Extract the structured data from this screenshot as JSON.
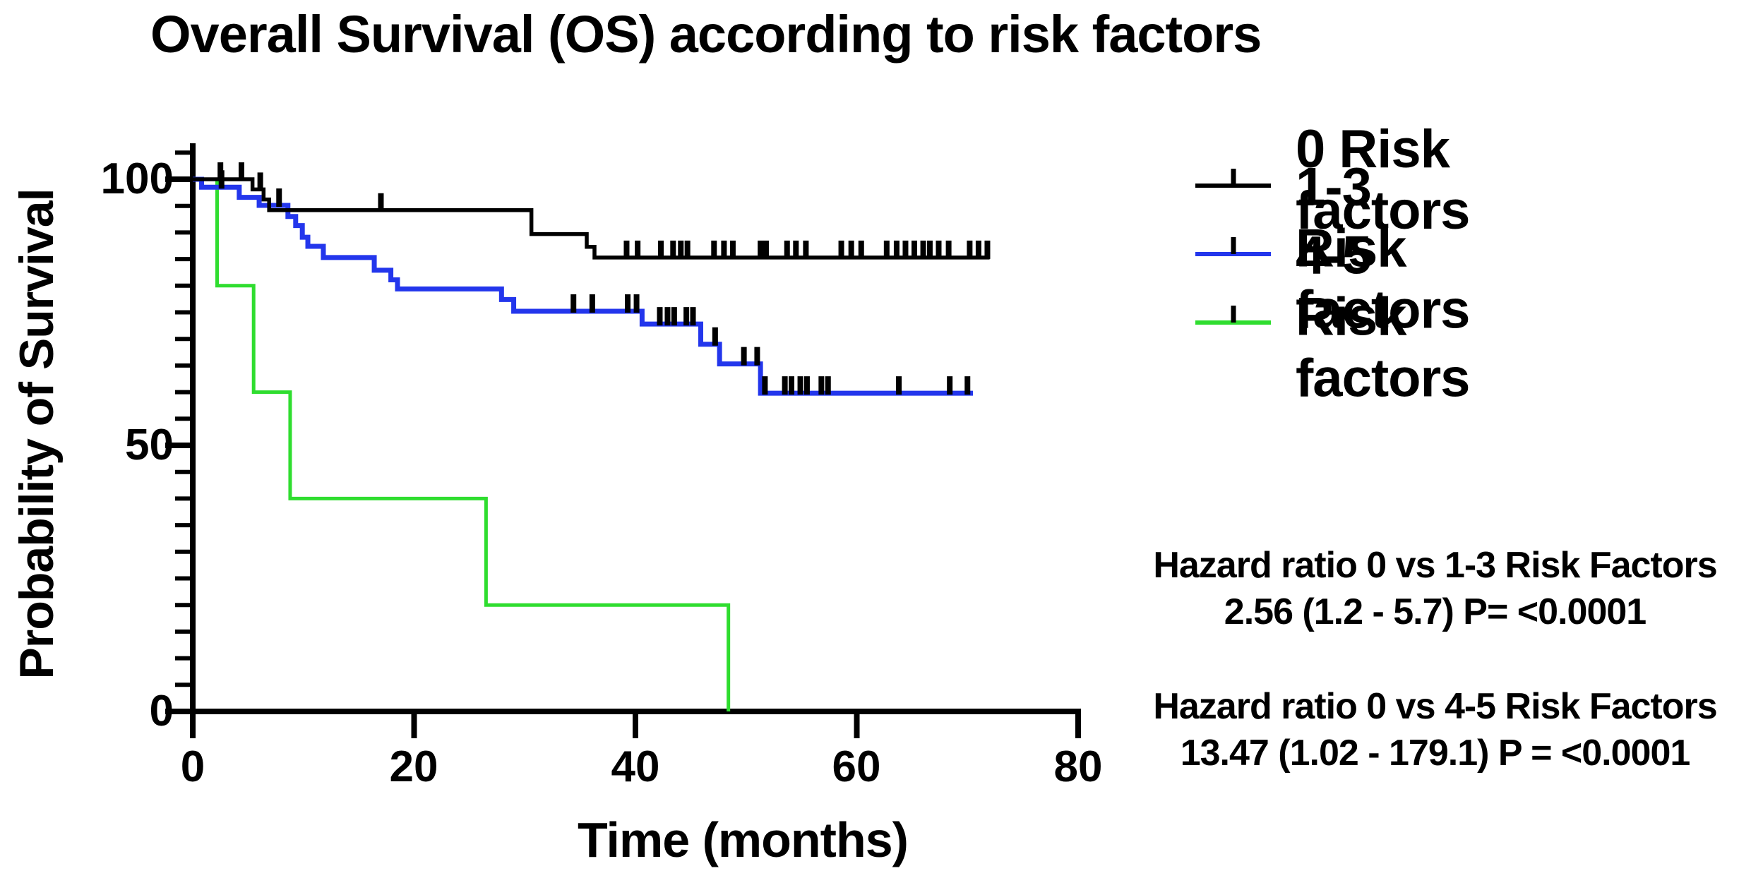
{
  "title": "Overall Survival (OS) according to risk factors",
  "axes": {
    "x": {
      "title": "Time (months)",
      "tick_labels": [
        "0",
        "20",
        "40",
        "60",
        "80"
      ]
    },
    "y": {
      "title": "Probability of Survival",
      "tick_labels": [
        "100",
        "50",
        "0"
      ]
    }
  },
  "annotations": {
    "hr1": {
      "line1": "Hazard ratio 0 vs 1-3 Risk Factors",
      "line2": "2.56 (1.2 - 5.7) P= <0.0001"
    },
    "hr2": {
      "line1": "Hazard ratio 0 vs 4-5 Risk Factors",
      "line2": "13.47 (1.02 - 179.1) P = <0.0001"
    }
  },
  "chart_data": {
    "type": "line",
    "subtype": "kaplan-meier-step",
    "title": "Overall Survival (OS) according to risk factors",
    "xlabel": "Time (months)",
    "ylabel": "Probability of Survival",
    "xlim": [
      0,
      80
    ],
    "ylim": [
      0,
      100
    ],
    "x_ticks": [
      0,
      20,
      40,
      60,
      80
    ],
    "y_major_ticks": [
      0,
      50,
      100
    ],
    "y_minor_tick_step": 5,
    "grid": false,
    "legend_position": "right",
    "censor_color": "#000000",
    "series": [
      {
        "name": "0 Risk factors",
        "color": "#000000",
        "steps": [
          [
            0,
            100
          ],
          [
            5.4,
            98.1
          ],
          [
            6.4,
            96.2
          ],
          [
            6.9,
            94.2
          ],
          [
            30.6,
            89.7
          ],
          [
            35.6,
            87.3
          ],
          [
            36.3,
            85.3
          ]
        ],
        "end_t": 72,
        "censor_t": [
          2.5,
          4.4,
          6.1,
          17.0,
          39.2,
          40.2,
          42.3,
          43.4,
          44.1,
          44.7,
          47.1,
          48.0,
          48.8,
          51.3,
          51.8,
          53.7,
          54.5,
          55.4,
          58.6,
          59.5,
          60.4,
          62.7,
          63.6,
          64.4,
          65.2,
          66.0,
          66.6,
          67.4,
          68.3,
          70.2,
          71.0,
          71.8
        ]
      },
      {
        "name": "1-3 Risk factors",
        "color": "#2336EC",
        "steps": [
          [
            0,
            100
          ],
          [
            0.8,
            98.5
          ],
          [
            4.2,
            96.6
          ],
          [
            6.0,
            95.1
          ],
          [
            8.6,
            93.0
          ],
          [
            9.3,
            91.3
          ],
          [
            9.9,
            89.1
          ],
          [
            10.4,
            87.4
          ],
          [
            11.8,
            85.3
          ],
          [
            16.4,
            82.9
          ],
          [
            17.9,
            81.1
          ],
          [
            18.5,
            79.4
          ],
          [
            27.9,
            77.4
          ],
          [
            29.0,
            75.2
          ],
          [
            40.6,
            72.8
          ],
          [
            45.9,
            69.0
          ],
          [
            47.6,
            65.3
          ],
          [
            51.3,
            59.8
          ]
        ],
        "end_t": 70.5,
        "censor_t": [
          2.6,
          7.8,
          34.4,
          36.1,
          39.3,
          40.1,
          42.2,
          42.9,
          43.5,
          44.6,
          45.2,
          47.2,
          49.8,
          51.0,
          51.7,
          53.5,
          54.1,
          54.9,
          55.5,
          56.8,
          57.4,
          63.8,
          68.4,
          70.0
        ]
      },
      {
        "name": "4-5 Risk factors",
        "color": "#2FDD2F",
        "steps": [
          [
            0,
            100
          ],
          [
            2.2,
            80
          ],
          [
            5.5,
            60
          ],
          [
            8.8,
            40
          ],
          [
            26.5,
            20
          ],
          [
            48.4,
            0
          ]
        ],
        "end_t": 48.4,
        "censor_t": []
      }
    ]
  }
}
